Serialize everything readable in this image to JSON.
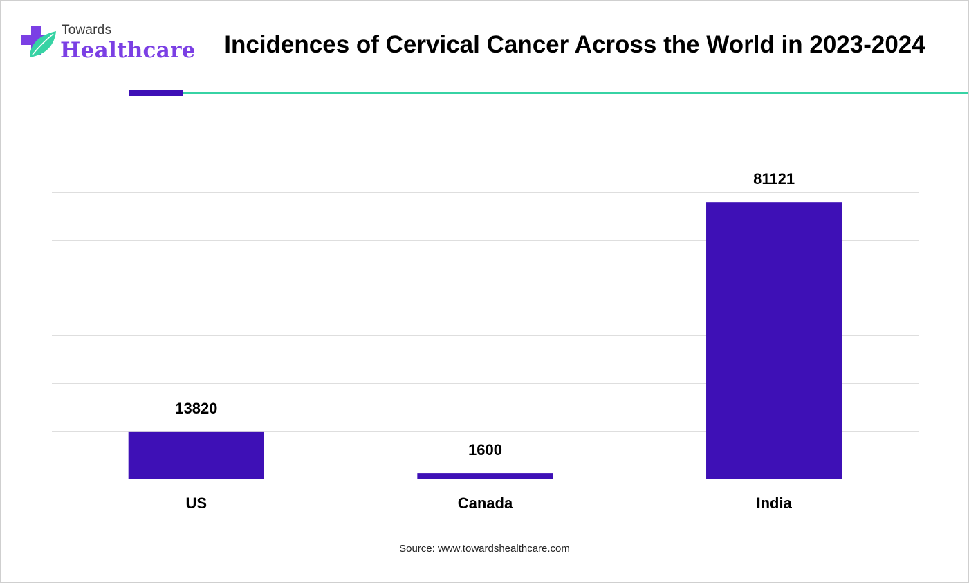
{
  "brand": {
    "small": "Towards",
    "big": "Healthcare",
    "colors": {
      "purple": "#7b3fe4",
      "green": "#37d3a4"
    }
  },
  "header": {
    "title": "Incidences of Cervical Cancer Across the World in 2023-2024"
  },
  "footer": {
    "source": "Source: www.towardshealthcare.com"
  },
  "chart_data": {
    "type": "bar",
    "title": "Incidences of Cervical Cancer Across the World in 2023-2024",
    "categories": [
      "US",
      "Canada",
      "India"
    ],
    "values": [
      13820,
      1600,
      81121
    ],
    "data_labels": [
      "13820",
      "1600",
      "81121"
    ],
    "ylim": [
      0,
      98000
    ],
    "ygrid_step": 14000,
    "grid": true,
    "y_axis_labels_shown": false,
    "legend": "none",
    "bar_color": "#3e10b6"
  }
}
